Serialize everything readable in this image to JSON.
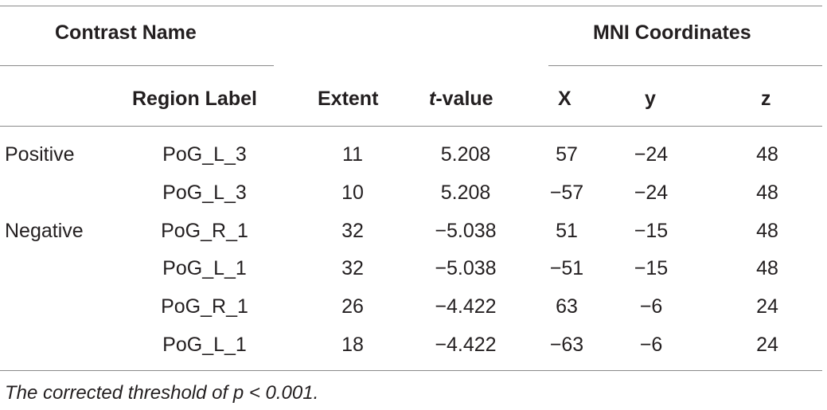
{
  "header": {
    "contrast_name": "Contrast Name",
    "mni_coordinates": "MNI Coordinates",
    "region_label": "Region Label",
    "extent": "Extent",
    "t_value_prefix": "t",
    "t_value_suffix": "-value",
    "x": "X",
    "y": "y",
    "z": "z"
  },
  "rows": [
    {
      "contrast": "Positive",
      "region": "PoG_L_3",
      "extent": "11",
      "t_value": "5.208",
      "x": "57",
      "y": "−24",
      "z": "48"
    },
    {
      "contrast": "",
      "region": "PoG_L_3",
      "extent": "10",
      "t_value": "5.208",
      "x": "−57",
      "y": "−24",
      "z": "48"
    },
    {
      "contrast": "Negative",
      "region": "PoG_R_1",
      "extent": "32",
      "t_value": "−5.038",
      "x": "51",
      "y": "−15",
      "z": "48"
    },
    {
      "contrast": "",
      "region": "PoG_L_1",
      "extent": "32",
      "t_value": "−5.038",
      "x": "−51",
      "y": "−15",
      "z": "48"
    },
    {
      "contrast": "",
      "region": "PoG_R_1",
      "extent": "26",
      "t_value": "−4.422",
      "x": "63",
      "y": "−6",
      "z": "24"
    },
    {
      "contrast": "",
      "region": "PoG_L_1",
      "extent": "18",
      "t_value": "−4.422",
      "x": "−63",
      "y": "−6",
      "z": "24"
    }
  ],
  "footnote": "The corrected threshold of p < 0.001."
}
